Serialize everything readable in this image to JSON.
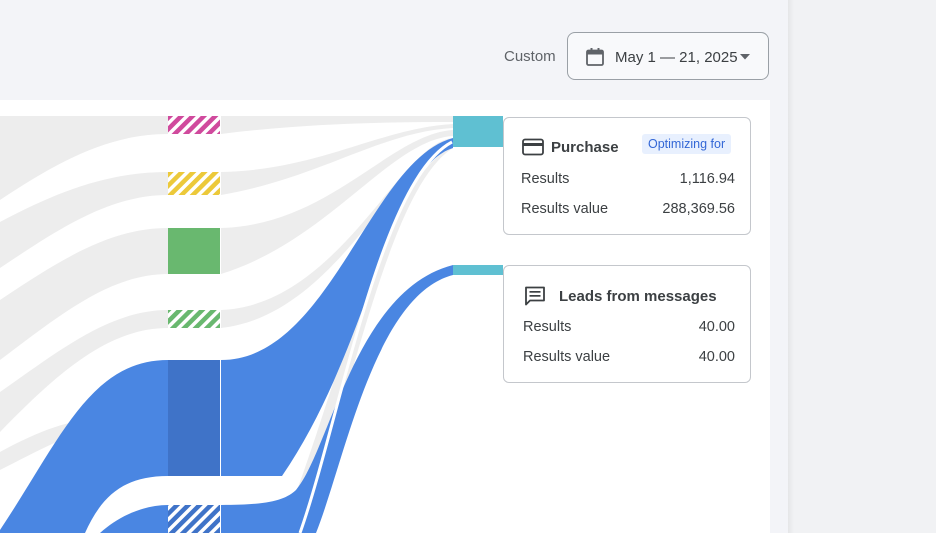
{
  "header": {
    "range_label": "Custom",
    "date_range": "May 1 — 21, 2025"
  },
  "icons": {
    "calendar": "calendar-icon",
    "dropdown": "chevron-down-icon",
    "credit_card": "credit-card-icon",
    "message": "message-icon"
  },
  "colors": {
    "flow_blue": "#4a86e2",
    "flow_grey": "#ececec",
    "node_pink": "#d04a9d",
    "node_yellow": "#ecc93a",
    "node_green": "#69b86f",
    "node_dark_blue": "#3f73c8",
    "node_teal": "#5fc0d2",
    "badge_blue": "#3367d6"
  },
  "results": [
    {
      "name": "Purchase",
      "badge": "Optimizing for",
      "rows": [
        {
          "label": "Results",
          "value": "1,116.94"
        },
        {
          "label": "Results value",
          "value": "288,369.56"
        }
      ]
    },
    {
      "name": "Leads from messages",
      "rows": [
        {
          "label": "Results",
          "value": "40.00"
        },
        {
          "label": "Results value",
          "value": "40.00"
        }
      ]
    }
  ]
}
